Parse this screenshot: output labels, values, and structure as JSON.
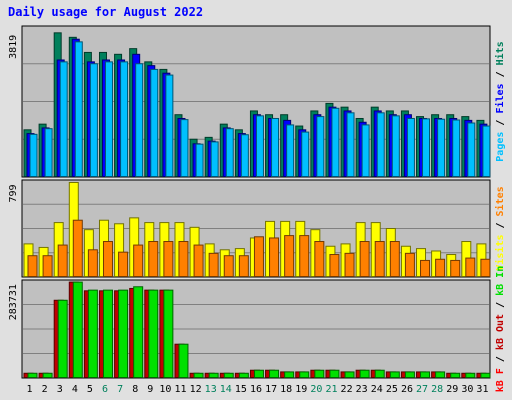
{
  "colors": {
    "page_bg": "#e0e0e0",
    "plot_bg": "#c0c0c0",
    "frame": "#000000",
    "grid": "#808080",
    "title": "#0000ff",
    "hits": "#00805c",
    "files": "#0000ff",
    "pages": "#00c0ff",
    "visits": "#ffff00",
    "sites": "#ff8000",
    "kb_in": "#00e000",
    "kb_out": "#c00000",
    "weekend_label": "#00805c",
    "weekday_label": "#000000",
    "kb_f": "#ff0000",
    "slash": "#000000"
  },
  "chart_data": {
    "type": "bar",
    "title": "Daily usage for August 2022",
    "categories": [
      "1",
      "2",
      "3",
      "4",
      "5",
      "6",
      "7",
      "8",
      "9",
      "10",
      "11",
      "12",
      "13",
      "14",
      "15",
      "16",
      "17",
      "18",
      "19",
      "20",
      "21",
      "22",
      "23",
      "24",
      "25",
      "26",
      "27",
      "28",
      "29",
      "30",
      "31"
    ],
    "weekend_days": [
      "6",
      "7",
      "13",
      "14",
      "20",
      "21",
      "27",
      "28"
    ],
    "panels": [
      {
        "id": "usage",
        "max_label": "3819",
        "ylim": [
          0,
          4000
        ],
        "legend": [
          {
            "key": "pages",
            "text": "Pages"
          },
          {
            "key": "slash",
            "text": " / "
          },
          {
            "key": "files",
            "text": "Files"
          },
          {
            "key": "slash",
            "text": " / "
          },
          {
            "key": "hits",
            "text": "Hits"
          }
        ],
        "series": [
          {
            "key": "hits",
            "values": [
              1250,
              1400,
              3819,
              3700,
              3300,
              3300,
              3250,
              3400,
              3050,
              2850,
              1650,
              1000,
              1050,
              1400,
              1250,
              1750,
              1650,
              1650,
              1350,
              1750,
              1950,
              1850,
              1550,
              1850,
              1750,
              1750,
              1600,
              1650,
              1650,
              1600,
              1500
            ]
          },
          {
            "key": "files",
            "values": [
              1150,
              1300,
              3100,
              3650,
              3050,
              3100,
              3100,
              3250,
              2950,
              2750,
              1550,
              880,
              950,
              1300,
              1150,
              1650,
              1550,
              1500,
              1250,
              1650,
              1850,
              1750,
              1450,
              1750,
              1650,
              1650,
              1550,
              1550,
              1550,
              1500,
              1400
            ]
          },
          {
            "key": "pages",
            "values": [
              1130,
              1280,
              3050,
              3580,
              3000,
              3050,
              3050,
              3000,
              2850,
              2700,
              1520,
              870,
              930,
              1280,
              1120,
              1620,
              1550,
              1380,
              1190,
              1600,
              1820,
              1700,
              1380,
              1700,
              1620,
              1550,
              1540,
              1530,
              1510,
              1430,
              1350
            ]
          }
        ]
      },
      {
        "id": "visits",
        "max_label": "799",
        "ylim": [
          0,
          820
        ],
        "legend": [
          {
            "key": "visits",
            "text": "Visits"
          },
          {
            "key": "slash",
            "text": " / "
          },
          {
            "key": "sites",
            "text": "Sites"
          }
        ],
        "series": [
          {
            "key": "visits",
            "values": [
              280,
              250,
              460,
              799,
              400,
              480,
              450,
              500,
              460,
              460,
              460,
              420,
              280,
              230,
              240,
              330,
              470,
              470,
              470,
              400,
              260,
              280,
              460,
              460,
              410,
              260,
              240,
              220,
              190,
              300,
              280
            ]
          },
          {
            "key": "sites",
            "values": [
              180,
              180,
              270,
              480,
              230,
              300,
              210,
              270,
              300,
              300,
              300,
              270,
              200,
              180,
              180,
              340,
              330,
              350,
              350,
              300,
              190,
              200,
              300,
              300,
              300,
              200,
              140,
              150,
              140,
              160,
              150
            ]
          }
        ]
      },
      {
        "id": "traffic",
        "max_label": "283731",
        "ylim": [
          0,
          290000
        ],
        "legend": [
          {
            "key": "kb_f",
            "text": "kB F"
          },
          {
            "key": "slash",
            "text": " / "
          },
          {
            "key": "kb_out",
            "text": "kB Out"
          },
          {
            "key": "slash",
            "text": " / "
          },
          {
            "key": "kb_in",
            "text": "kB In"
          }
        ],
        "series": [
          {
            "key": "kb_out",
            "values": [
              14000,
              14000,
              230000,
              283731,
              258000,
              258000,
              258000,
              265000,
              260000,
              260000,
              100000,
              14000,
              14000,
              14000,
              14000,
              23000,
              23000,
              18000,
              18000,
              23000,
              23000,
              18000,
              23000,
              23000,
              18000,
              18000,
              18000,
              18000,
              14000,
              14000,
              14000
            ]
          },
          {
            "key": "kb_in",
            "values": [
              14000,
              14000,
              230000,
              283731,
              260000,
              260000,
              260000,
              270000,
              260000,
              260000,
              100000,
              14000,
              14000,
              14000,
              14000,
              23000,
              23000,
              18000,
              18000,
              23000,
              23000,
              18000,
              23000,
              23000,
              18000,
              18000,
              18000,
              18000,
              14000,
              14000,
              14000
            ]
          }
        ]
      }
    ]
  }
}
